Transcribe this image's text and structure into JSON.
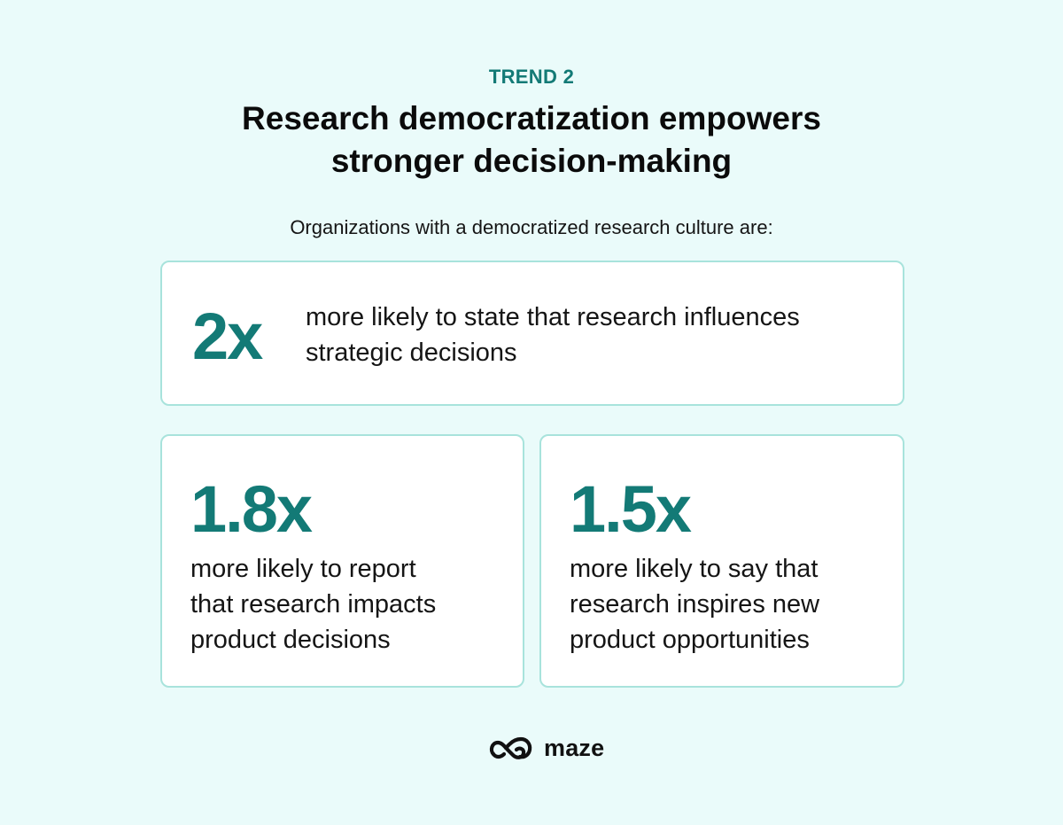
{
  "header": {
    "eyebrow": "TREND 2",
    "title_line1": "Research democratization empowers",
    "title_line2": "stronger decision-making",
    "intro": "Organizations with a democratized research culture are:"
  },
  "stats": [
    {
      "value": "2x",
      "lines": [
        "more likely to state that research influences",
        "strategic decisions"
      ]
    },
    {
      "value": "1.8x",
      "lines": [
        "more likely to report",
        "that research impacts",
        "product decisions"
      ]
    },
    {
      "value": "1.5x",
      "lines": [
        "more likely to say that",
        "research inspires new",
        "product opportunities"
      ]
    }
  ],
  "brand": {
    "name": "maze",
    "icon": "maze-logo-icon",
    "accent_color": "#137a76",
    "background_color": "#eafbfa",
    "card_border_color": "#a8e3dc"
  }
}
